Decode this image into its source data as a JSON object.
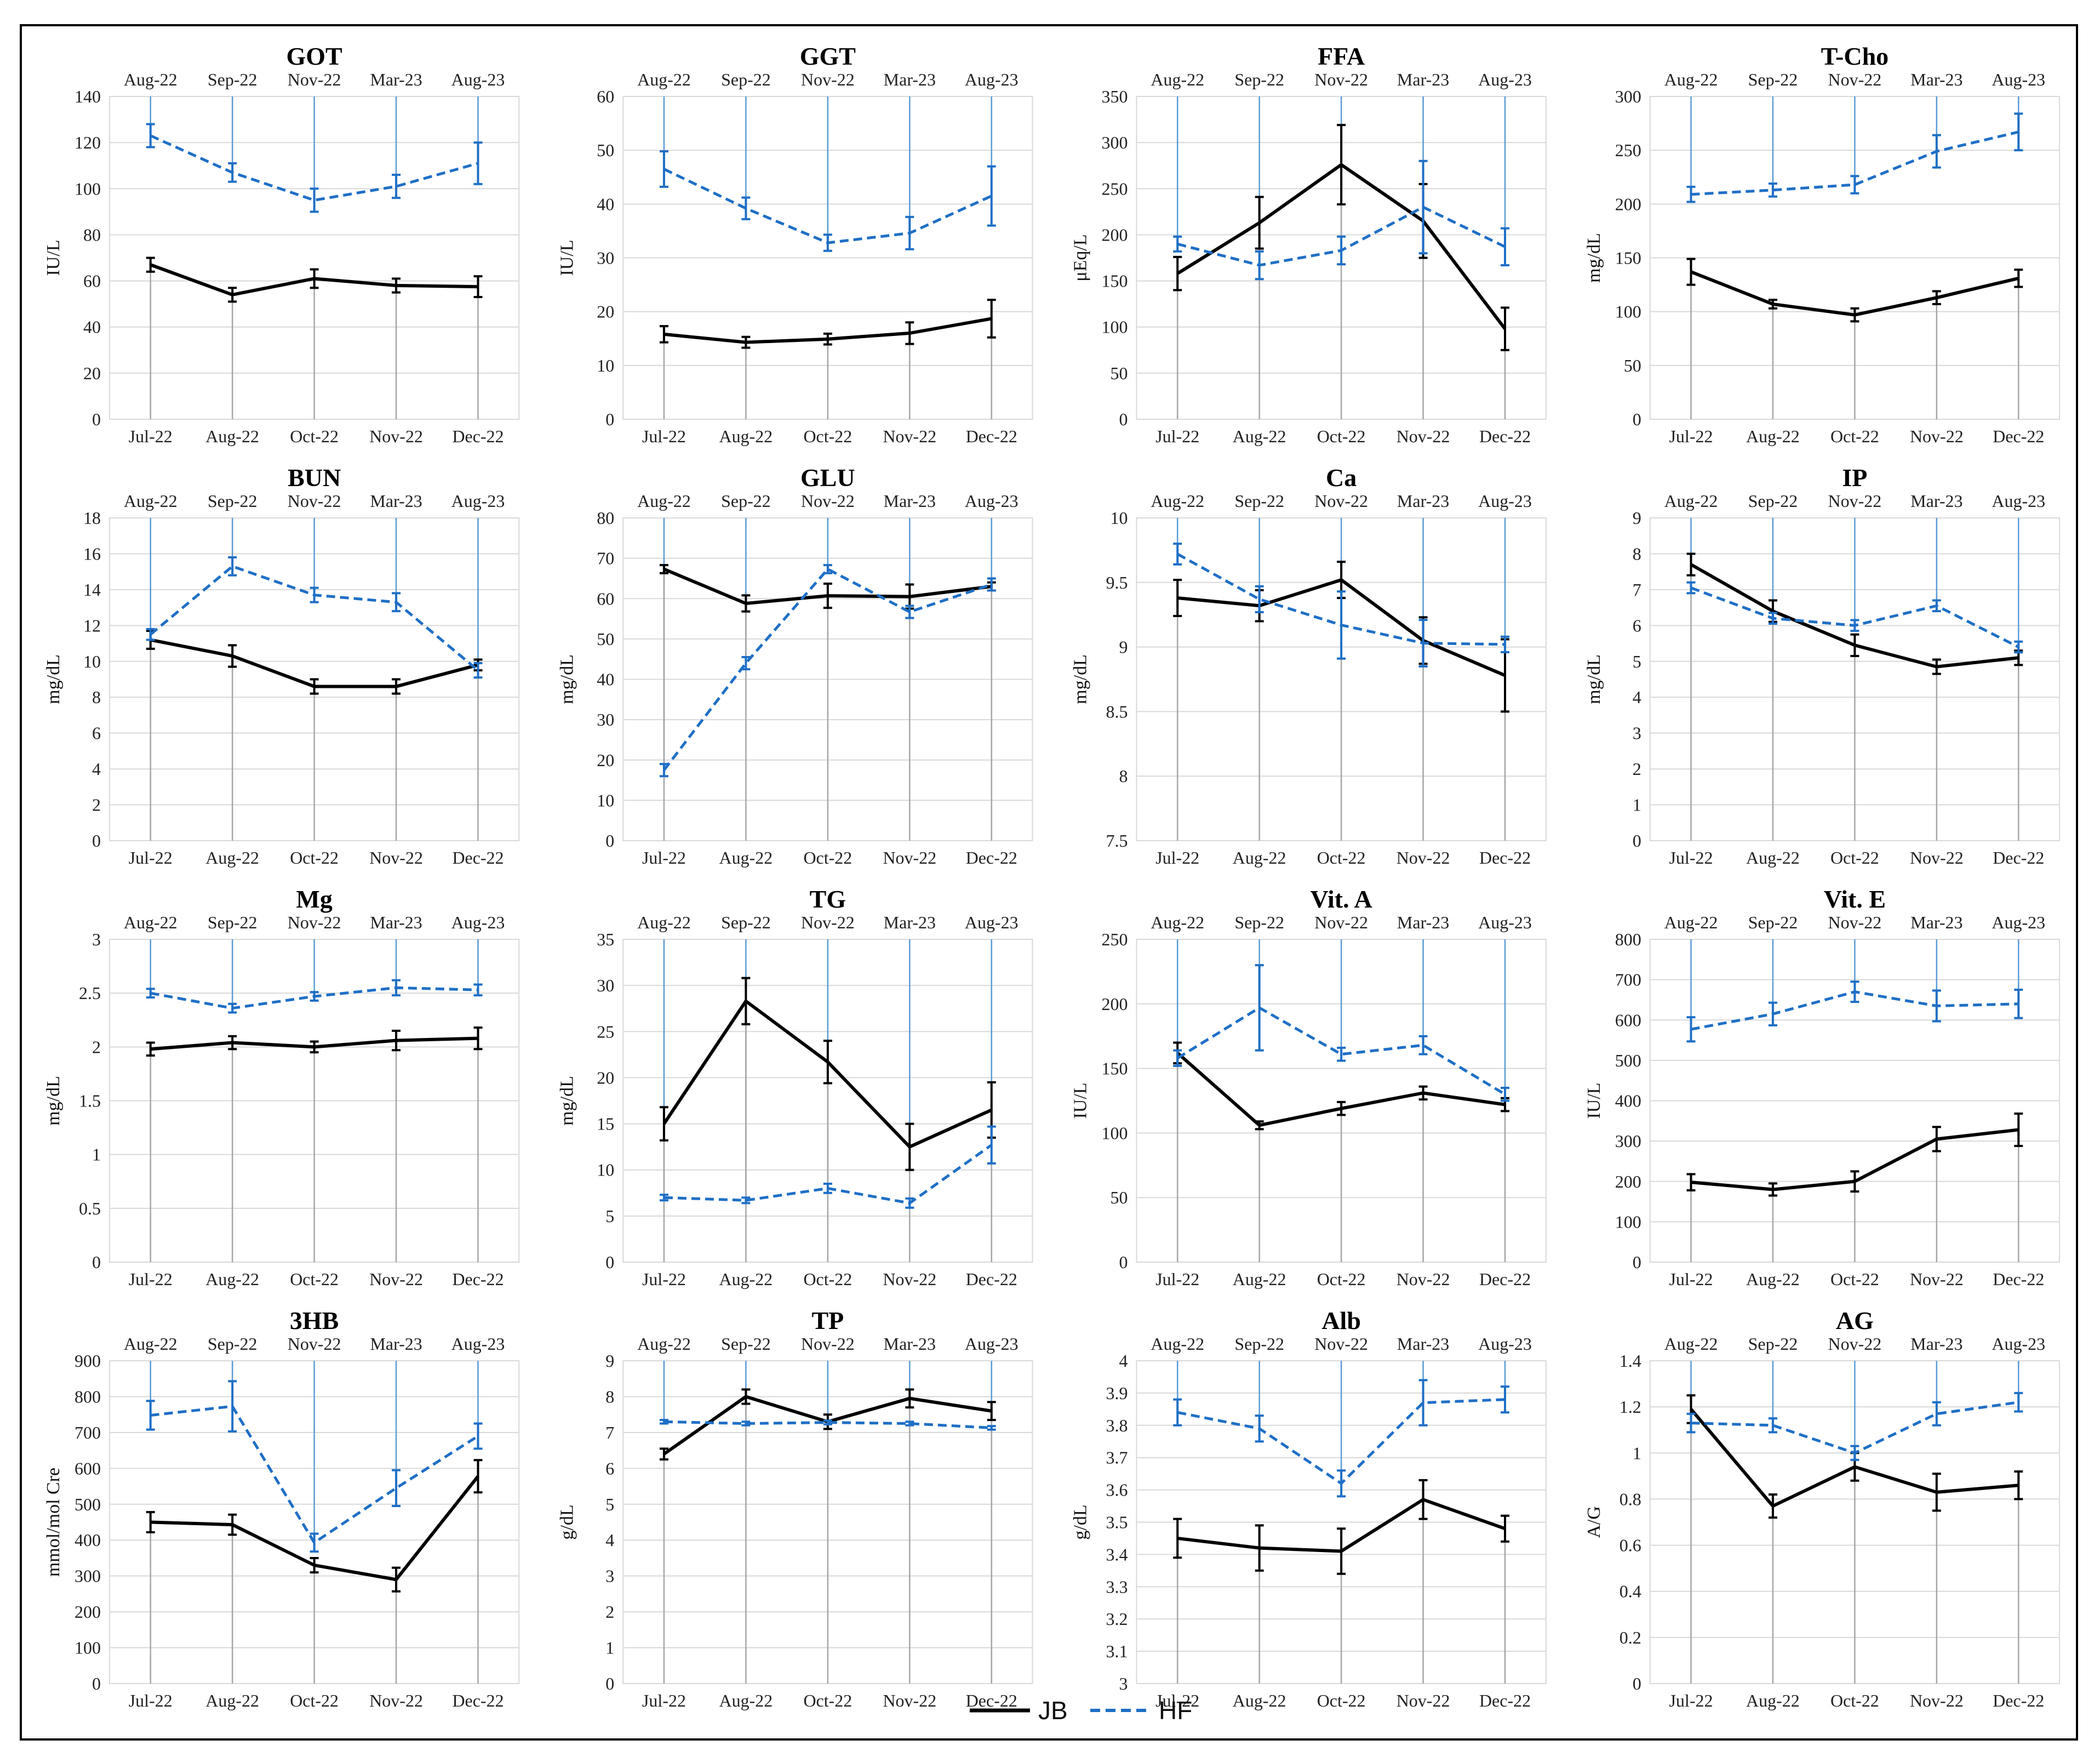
{
  "bottom_axis_labels": [
    "Jul-22",
    "Aug-22",
    "Oct-22",
    "Nov-22",
    "Dec-22"
  ],
  "top_axis_labels": [
    "Aug-22",
    "Sep-22",
    "Nov-22",
    "Mar-23",
    "Aug-23"
  ],
  "legend": {
    "jb": "JB",
    "hf": "HF"
  },
  "colors": {
    "jb": "#000000",
    "hf": "#1f6fc6",
    "grid": "#d9d9d9",
    "drop_jb": "#a6a6a6",
    "drop_hf": "#5b9bd5"
  },
  "chart_data": [
    {
      "type": "line",
      "title": "GOT",
      "ylabel": "IU/L",
      "ylim": [
        0,
        140
      ],
      "step": 20,
      "series": [
        {
          "name": "JB",
          "values": [
            67,
            54,
            61,
            58,
            57.5
          ],
          "err": [
            3,
            3,
            4,
            3,
            4.5
          ]
        },
        {
          "name": "HF",
          "values": [
            123,
            107,
            95,
            101,
            111
          ],
          "err": [
            5,
            4,
            5,
            5,
            9
          ]
        }
      ]
    },
    {
      "type": "line",
      "title": "GGT",
      "ylabel": "IU/L",
      "ylim": [
        0,
        60
      ],
      "step": 10,
      "series": [
        {
          "name": "JB",
          "values": [
            15.8,
            14.3,
            14.9,
            16,
            18.7
          ],
          "err": [
            1.5,
            1,
            1,
            2,
            3.5
          ]
        },
        {
          "name": "HF",
          "values": [
            46.5,
            39.2,
            32.8,
            34.6,
            41.5
          ],
          "err": [
            3.3,
            2,
            1.5,
            3,
            5.5
          ]
        }
      ]
    },
    {
      "type": "line",
      "title": "FFA",
      "ylabel": "μEq/L",
      "ylim": [
        0,
        350
      ],
      "step": 50,
      "series": [
        {
          "name": "JB",
          "values": [
            158,
            213,
            276,
            215,
            98
          ],
          "err": [
            18,
            28,
            43,
            40,
            23
          ]
        },
        {
          "name": "HF",
          "values": [
            190,
            167,
            183,
            230,
            187
          ],
          "err": [
            8,
            15,
            15,
            50,
            20
          ]
        }
      ]
    },
    {
      "type": "line",
      "title": "T-Cho",
      "ylabel": "mg/dL",
      "ylim": [
        0,
        300
      ],
      "step": 50,
      "series": [
        {
          "name": "JB",
          "values": [
            137,
            107,
            97,
            113,
            131
          ],
          "err": [
            12,
            4,
            6,
            6,
            8
          ]
        },
        {
          "name": "HF",
          "values": [
            209,
            213,
            218,
            249,
            267
          ],
          "err": [
            7,
            6,
            8,
            15,
            17
          ]
        }
      ]
    },
    {
      "type": "line",
      "title": "BUN",
      "ylabel": "mg/dL",
      "ylim": [
        0,
        18
      ],
      "step": 2,
      "series": [
        {
          "name": "JB",
          "values": [
            11.2,
            10.3,
            8.6,
            8.6,
            9.8
          ],
          "err": [
            0.5,
            0.6,
            0.4,
            0.4,
            0.3
          ]
        },
        {
          "name": "HF",
          "values": [
            11.5,
            15.3,
            13.7,
            13.3,
            9.5
          ],
          "err": [
            0.3,
            0.5,
            0.4,
            0.5,
            0.4
          ]
        }
      ]
    },
    {
      "type": "line",
      "title": "GLU",
      "ylabel": "mg/dL",
      "ylim": [
        0,
        80
      ],
      "step": 10,
      "series": [
        {
          "name": "JB",
          "values": [
            67.3,
            58.8,
            60.7,
            60.5,
            63
          ],
          "err": [
            1,
            2,
            3,
            3,
            1
          ]
        },
        {
          "name": "HF",
          "values": [
            17.5,
            44,
            67.3,
            56.7,
            63.5
          ],
          "err": [
            1.5,
            1.5,
            1,
            1.5,
            1.5
          ]
        }
      ]
    },
    {
      "type": "line",
      "title": "Ca",
      "ylabel": "mg/dL",
      "ylim": [
        7.5,
        10
      ],
      "step": 0.5,
      "series": [
        {
          "name": "JB",
          "values": [
            9.38,
            9.32,
            9.52,
            9.05,
            8.78
          ],
          "err": [
            0.14,
            0.12,
            0.14,
            0.18,
            0.28
          ]
        },
        {
          "name": "HF",
          "values": [
            9.72,
            9.37,
            9.17,
            9.03,
            9.02
          ],
          "err": [
            0.08,
            0.1,
            0.26,
            0.18,
            0.06
          ]
        }
      ]
    },
    {
      "type": "line",
      "title": "IP",
      "ylabel": "mg/dL",
      "ylim": [
        0,
        9
      ],
      "step": 1,
      "series": [
        {
          "name": "JB",
          "values": [
            7.7,
            6.4,
            5.45,
            4.85,
            5.1
          ],
          "err": [
            0.3,
            0.3,
            0.3,
            0.2,
            0.2
          ]
        },
        {
          "name": "HF",
          "values": [
            7.05,
            6.2,
            6,
            6.55,
            5.4
          ],
          "err": [
            0.15,
            0.15,
            0.15,
            0.15,
            0.15
          ]
        }
      ]
    },
    {
      "type": "line",
      "title": "Mg",
      "ylabel": "mg/dL",
      "ylim": [
        0,
        3
      ],
      "step": 0.5,
      "series": [
        {
          "name": "JB",
          "values": [
            1.98,
            2.04,
            2,
            2.06,
            2.08
          ],
          "err": [
            0.06,
            0.06,
            0.05,
            0.09,
            0.1
          ]
        },
        {
          "name": "HF",
          "values": [
            2.5,
            2.36,
            2.47,
            2.55,
            2.53
          ],
          "err": [
            0.04,
            0.04,
            0.04,
            0.07,
            0.05
          ]
        }
      ]
    },
    {
      "type": "line",
      "title": "TG",
      "ylabel": "mg/dL",
      "ylim": [
        0,
        35
      ],
      "step": 5,
      "series": [
        {
          "name": "JB",
          "values": [
            15,
            28.3,
            21.7,
            12.5,
            16.5
          ],
          "err": [
            1.8,
            2.5,
            2.3,
            2.5,
            3
          ]
        },
        {
          "name": "HF",
          "values": [
            7,
            6.7,
            8,
            6.4,
            12.7
          ],
          "err": [
            0.3,
            0.3,
            0.5,
            0.5,
            2
          ]
        }
      ]
    },
    {
      "type": "line",
      "title": "Vit. A",
      "ylabel": "IU/L",
      "ylim": [
        0,
        250
      ],
      "step": 50,
      "series": [
        {
          "name": "JB",
          "values": [
            162,
            106,
            119,
            131,
            122
          ],
          "err": [
            8,
            3,
            5,
            5,
            5
          ]
        },
        {
          "name": "HF",
          "values": [
            158,
            197,
            161,
            168,
            130
          ],
          "err": [
            6,
            33,
            5,
            7,
            5
          ]
        }
      ]
    },
    {
      "type": "line",
      "title": "Vit. E",
      "ylabel": "IU/L",
      "ylim": [
        0,
        800
      ],
      "step": 100,
      "series": [
        {
          "name": "JB",
          "values": [
            198,
            180,
            200,
            305,
            328
          ],
          "err": [
            20,
            15,
            25,
            30,
            40
          ]
        },
        {
          "name": "HF",
          "values": [
            577,
            615,
            670,
            635,
            640
          ],
          "err": [
            30,
            28,
            25,
            38,
            35
          ]
        }
      ]
    },
    {
      "type": "line",
      "title": "3HB",
      "ylabel": "mmol/mol Cre",
      "ylim": [
        0,
        900
      ],
      "step": 100,
      "series": [
        {
          "name": "JB",
          "values": [
            450,
            443,
            330,
            290,
            578
          ],
          "err": [
            28,
            28,
            20,
            33,
            45
          ]
        },
        {
          "name": "HF",
          "values": [
            748,
            773,
            393,
            545,
            690
          ],
          "err": [
            40,
            70,
            25,
            50,
            35
          ]
        }
      ]
    },
    {
      "type": "line",
      "title": "TP",
      "ylabel": "g/dL",
      "ylim": [
        0,
        9
      ],
      "step": 1,
      "series": [
        {
          "name": "JB",
          "values": [
            6.4,
            8,
            7.3,
            7.95,
            7.6
          ],
          "err": [
            0.15,
            0.2,
            0.2,
            0.25,
            0.25
          ]
        },
        {
          "name": "HF",
          "values": [
            7.3,
            7.25,
            7.28,
            7.25,
            7.13
          ],
          "err": [
            0.05,
            0.05,
            0.05,
            0.05,
            0.05
          ]
        }
      ]
    },
    {
      "type": "line",
      "title": "Alb",
      "ylabel": "g/dL",
      "ylim": [
        3,
        4
      ],
      "step": 0.1,
      "series": [
        {
          "name": "JB",
          "values": [
            3.45,
            3.42,
            3.41,
            3.57,
            3.48
          ],
          "err": [
            0.06,
            0.07,
            0.07,
            0.06,
            0.04
          ]
        },
        {
          "name": "HF",
          "values": [
            3.84,
            3.79,
            3.62,
            3.87,
            3.88
          ],
          "err": [
            0.04,
            0.04,
            0.04,
            0.07,
            0.04
          ]
        }
      ]
    },
    {
      "type": "line",
      "title": "AG",
      "ylabel": "A/G",
      "ylim": [
        0,
        1.4
      ],
      "step": 0.2,
      "series": [
        {
          "name": "JB",
          "values": [
            1.19,
            0.77,
            0.94,
            0.83,
            0.86
          ],
          "err": [
            0.06,
            0.05,
            0.06,
            0.08,
            0.06
          ]
        },
        {
          "name": "HF",
          "values": [
            1.13,
            1.12,
            1,
            1.17,
            1.22
          ],
          "err": [
            0.04,
            0.03,
            0.03,
            0.05,
            0.04
          ]
        }
      ]
    }
  ]
}
